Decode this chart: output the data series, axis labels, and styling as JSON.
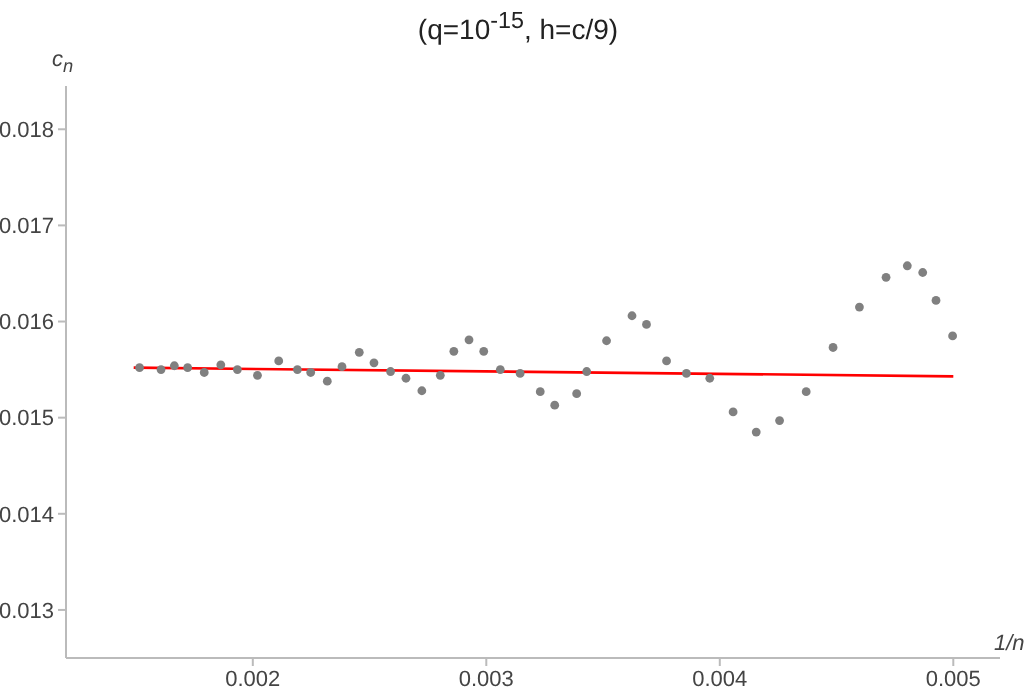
{
  "chart_data": {
    "type": "scatter",
    "title": "(q=10$^{-15}$, h=c/9)",
    "xlabel": "1/n",
    "ylabel": "c$_{n}$",
    "xlim": [
      0.0012,
      0.0052
    ],
    "xticks": [
      0.002,
      0.003,
      0.004,
      0.005
    ],
    "ylim": [
      0.0125,
      0.01845
    ],
    "yticks": [
      0.013,
      0.014,
      0.015,
      0.016,
      0.017,
      0.018
    ],
    "series": [
      {
        "type": "scatter",
        "color": "#808080",
        "marker": "circle",
        "x": [
          0.001515,
          0.001607,
          0.001664,
          0.001721,
          0.001792,
          0.001863,
          0.001934,
          0.00202,
          0.002111,
          0.002191,
          0.002248,
          0.002319,
          0.002382,
          0.002456,
          0.002519,
          0.00259,
          0.002656,
          0.002724,
          0.002803,
          0.002861,
          0.002926,
          0.002989,
          0.00306,
          0.003145,
          0.003231,
          0.003293,
          0.003387,
          0.00343,
          0.003515,
          0.003624,
          0.003686,
          0.003772,
          0.003857,
          0.003957,
          0.004057,
          0.004156,
          0.004256,
          0.00437,
          0.004485,
          0.004598,
          0.004712,
          0.004803,
          0.004869,
          0.004926,
          0.004997
        ],
        "values": [
          0.01552,
          0.0155,
          0.01554,
          0.01552,
          0.01547,
          0.01555,
          0.0155,
          0.01544,
          0.01559,
          0.0155,
          0.01547,
          0.01538,
          0.01553,
          0.01568,
          0.01557,
          0.01548,
          0.01541,
          0.01528,
          0.01544,
          0.01569,
          0.01581,
          0.01569,
          0.0155,
          0.01546,
          0.01527,
          0.01513,
          0.01525,
          0.01548,
          0.0158,
          0.01606,
          0.01597,
          0.01559,
          0.01546,
          0.01541,
          0.01506,
          0.01485,
          0.01497,
          0.01527,
          0.01573,
          0.01615,
          0.01646,
          0.01658,
          0.01651,
          0.01622,
          0.01585
        ]
      },
      {
        "type": "line",
        "color": "#ff0000",
        "line_style": "solid",
        "x": [
          0.00149,
          0.005
        ],
        "values": [
          0.01552,
          0.01543
        ]
      }
    ]
  }
}
